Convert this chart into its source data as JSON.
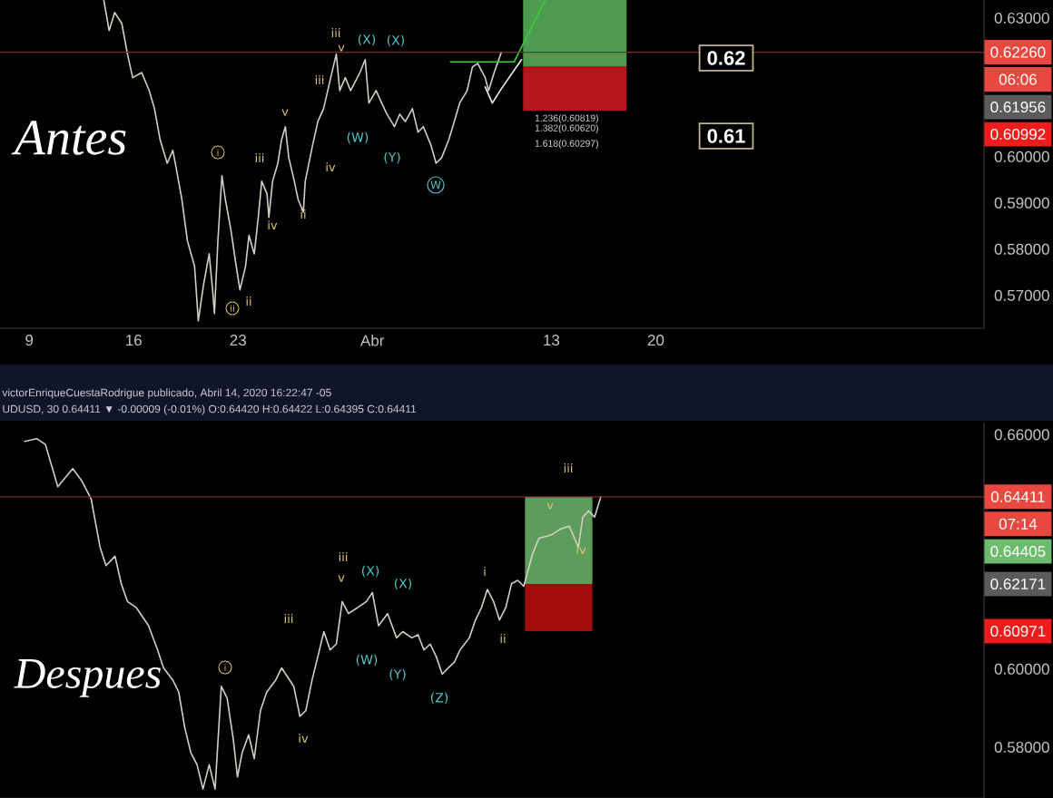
{
  "chart_data": [
    {
      "type": "line",
      "title": "Antes",
      "x": [
        "2020-03-14T00:00",
        "2020-03-14T08:30",
        "2020-03-14T17:30",
        "2020-03-15T05:00",
        "2020-03-15T14:00",
        "2020-03-15T22:30",
        "2020-03-16T13:00",
        "2020-03-17T01:00",
        "2020-03-17T09:30",
        "2020-03-17T18:30",
        "2020-03-18T06:00",
        "2020-03-18T15:00",
        "2020-03-18T20:30",
        "2020-03-19T05:30",
        "2020-03-19T14:30",
        "2020-03-20T02:00",
        "2020-03-20T08:00",
        "2020-03-20T16:30",
        "2020-03-21T01:30",
        "2020-03-21T07:00",
        "2020-03-21T10:00",
        "2020-03-21T15:30",
        "2020-03-21T22:00",
        "2020-03-22T03:30",
        "2020-03-22T12:30",
        "2020-03-22T21:00",
        "2020-03-23T03:00",
        "2020-03-23T12:00",
        "2020-03-23T17:30",
        "2020-03-24T02:00",
        "2020-03-24T08:30",
        "2020-03-24T14:00",
        "2020-03-24T22:30",
        "2020-03-25T01:30",
        "2020-03-25T07:30",
        "2020-03-25T16:00",
        "2020-03-25T22:00",
        "2020-03-26T04:00",
        "2020-03-26T09:30",
        "2020-03-26T18:30",
        "2020-03-27T00:30",
        "2020-03-27T09:00",
        "2020-03-27T12:00",
        "2020-03-28T00:00",
        "2020-03-28T08:30",
        "2020-03-28T17:30",
        "2020-03-29T05:00",
        "2020-03-29T14:00",
        "2020-03-29T19:30",
        "2020-03-30T04:30",
        "2020-03-30T13:00",
        "2020-03-31T04:00",
        "2020-03-31T12:30",
        "2020-03-31T18:30",
        "2020-04-01T06:00",
        "2020-04-01T15:00",
        "2020-04-01T23:30",
        "2020-04-02T11:30",
        "2020-04-02T20:00",
        "2020-04-03T05:00",
        "2020-04-03T16:30",
        "2020-04-04T01:30",
        "2020-04-04T10:00",
        "2020-04-04T22:00",
        "2020-04-05T06:30",
        "2020-04-05T15:30",
        "2020-04-06T03:00",
        "2020-04-06T12:00",
        "2020-04-06T20:30",
        "2020-04-07T08:30",
        "2020-04-07T17:00",
        "2020-04-08T01:30",
        "2020-04-08T13:30",
        "2020-04-08T19:00",
        "2020-04-09T04:00",
        "2020-04-09T15:30"
      ],
      "series": [
        {
          "color": "#d4cfc4",
          "values": [
            0.6339,
            0.6273,
            0.6312,
            0.6288,
            0.6222,
            0.6171,
            0.6182,
            0.6143,
            0.6104,
            0.6037,
            0.5986,
            0.6014,
            0.5975,
            0.5908,
            0.5818,
            0.5763,
            0.5645,
            0.5724,
            0.579,
            0.5712,
            0.5661,
            0.5818,
            0.5959,
            0.5908,
            0.5841,
            0.5763,
            0.5712,
            0.5763,
            0.583,
            0.579,
            0.5869,
            0.5947,
            0.592,
            0.5869,
            0.5947,
            0.5986,
            0.6037,
            0.6065,
            0.5998,
            0.5947,
            0.5908,
            0.588,
            0.5947,
            0.6026,
            0.6077,
            0.6104,
            0.6171,
            0.6222,
            0.6143,
            0.6171,
            0.6143,
            0.6182,
            0.621,
            0.6116,
            0.6143,
            0.6116,
            0.6092,
            0.6065,
            0.6092,
            0.6076,
            0.6104,
            0.6053,
            0.6065,
            0.6026,
            0.5986,
            0.5998,
            0.6037,
            0.6077,
            0.6116,
            0.6143,
            0.6194,
            0.6202,
            0.6171,
            0.6143,
            0.6182,
            0.6226
          ]
        },
        {
          "color": "#35d235",
          "x": [
            "2020-04-06T05:30",
            "2020-04-10T12:00",
            "2020-04-12T14:00"
          ],
          "values": [
            0.6205,
            0.6205,
            0.6339
          ]
        },
        {
          "color": "#f0f0f0",
          "x": [
            "2020-04-08T13:30",
            "2020-04-09T01:00",
            "2020-04-09T15:30",
            "2020-04-11T00:00"
          ],
          "values": [
            0.6151,
            0.6116,
            0.6147,
            0.621
          ]
        },
        {
          "color": "#4e9a50",
          "x": [
            "2020-04-11T02:30",
            "2020-04-18T01:00"
          ],
          "values": [
            null,
            null
          ],
          "lower": [
            0.61956,
            0.61956
          ],
          "upper": [
            0.6339,
            0.6339
          ]
        },
        {
          "color": "#b3161c",
          "x": [
            "2020-04-11T02:30",
            "2020-04-18T01:00"
          ],
          "values": [
            null,
            null
          ],
          "lower": [
            0.60992,
            0.60992
          ],
          "upper": [
            0.61956,
            0.61956
          ]
        }
      ],
      "xlim": [
        "2020-03-07T01:00",
        "2020-05-12T00:00"
      ],
      "xticks": [
        {
          "value": "2020-03-09",
          "label": "9"
        },
        {
          "value": "2020-03-16",
          "label": "16"
        },
        {
          "value": "2020-03-23",
          "label": "23"
        },
        {
          "value": "2020-04-01",
          "label": "Abr"
        },
        {
          "value": "2020-04-13",
          "label": "13"
        },
        {
          "value": "2020-04-20",
          "label": "20"
        }
      ],
      "ylim": [
        0.5629,
        0.6339
      ],
      "yticks": [
        {
          "value": 0.57,
          "label": "0.57000"
        },
        {
          "value": 0.58,
          "label": "0.58000"
        },
        {
          "value": 0.59,
          "label": "0.59000"
        },
        {
          "value": 0.6,
          "label": "0.60000"
        },
        {
          "value": 0.63,
          "label": "0.63000"
        }
      ],
      "ref_lines": [
        {
          "axis": "y",
          "value": 0.6226,
          "label": "0.62260",
          "color": "#7d2b28",
          "line_style": "solid"
        }
      ],
      "annotations": [
        {
          "text": "06:06",
          "y": 0.6226
        },
        "0.61956",
        "0.60992",
        "v",
        "iii",
        "iii",
        "v",
        "iii",
        "iv",
        "iv",
        "ii",
        "ii",
        "i",
        "ii",
        "(X)",
        "(X)",
        "(W)",
        "(Y)",
        "W",
        "1.236(0.60819)",
        "1.382(0.60620)",
        "1.618(0.60297)",
        "0.62",
        "0.61"
      ]
    },
    {
      "type": "line",
      "title": "Despues",
      "x": [
        "2020-03-08T16:30",
        "2020-03-09T12:00",
        "2020-03-10T02:00",
        "2020-03-10T22:00",
        "2020-03-11T22:00",
        "2020-03-12T12:30",
        "2020-03-13T03:30",
        "2020-03-13T18:00",
        "2020-03-14T03:30",
        "2020-03-14T18:00",
        "2020-03-15T04:00",
        "2020-03-15T14:00",
        "2020-03-16T04:30",
        "2020-03-17T00:00",
        "2020-03-17T14:30",
        "2020-03-18T00:00",
        "2020-03-18T15:00",
        "2020-03-19T00:30",
        "2020-03-19T10:30",
        "2020-03-19T20:00",
        "2020-03-20T06:00",
        "2020-03-20T15:30",
        "2020-03-21T01:30",
        "2020-03-21T11:00",
        "2020-03-21T21:00",
        "2020-03-22T06:30",
        "2020-03-22T16:30",
        "2020-03-22T23:00",
        "2020-03-23T06:30",
        "2020-03-23T17:00",
        "2020-03-24T02:00",
        "2020-03-24T12:00",
        "2020-03-24T22:00",
        "2020-03-25T12:30",
        "2020-03-25T22:00",
        "2020-03-26T07:30",
        "2020-03-26T17:30",
        "2020-03-27T03:30",
        "2020-03-27T13:00",
        "2020-03-27T23:00",
        "2020-03-28T08:30",
        "2020-03-28T18:00",
        "2020-03-29T04:00",
        "2020-03-29T14:00",
        "2020-03-29T23:30",
        "2020-03-30T09:30",
        "2020-03-31T00:00",
        "2020-03-31T14:30",
        "2020-04-01T00:00",
        "2020-04-01T10:00",
        "2020-04-02T00:30",
        "2020-04-02T15:00",
        "2020-04-03T01:00",
        "2020-04-03T15:30",
        "2020-04-04T01:30",
        "2020-04-04T11:00",
        "2020-04-04T21:00",
        "2020-04-05T06:30",
        "2020-04-05T16:30",
        "2020-04-06T02:00",
        "2020-04-06T12:00",
        "2020-04-06T21:00",
        "2020-04-07T12:00",
        "2020-04-07T22:00",
        "2020-04-08T07:30",
        "2020-04-08T17:00",
        "2020-04-09T03:00",
        "2020-04-09T12:30",
        "2020-04-09T22:30",
        "2020-04-10T08:00",
        "2020-04-10T18:00",
        "2020-04-11T03:30",
        "2020-04-11T18:00",
        "2020-04-12T04:00",
        "2020-04-12T23:30",
        "2020-04-13T14:00",
        "2020-04-14T04:30",
        "2020-04-14T19:30",
        "2020-04-15T02:30",
        "2020-04-15T12:00",
        "2020-04-15T21:30",
        "2020-04-16T07:30"
      ],
      "series": [
        {
          "color": "#5e9c5e",
          "x": [
            "2020-04-11T05:30",
            "2020-04-15T18:00"
          ],
          "values": [
            null,
            null
          ],
          "lower": [
            0.62171,
            0.62171
          ],
          "upper": [
            0.64405,
            0.64405
          ]
        },
        {
          "color": "#a30c0c",
          "x": [
            "2020-04-11T05:30",
            "2020-04-15T18:00"
          ],
          "values": [
            null,
            null
          ],
          "lower": [
            0.60971,
            0.60971
          ],
          "upper": [
            0.62171,
            0.62171
          ]
        },
        {
          "color": "#d4cfc4",
          "values": [
            0.6583,
            0.659,
            0.6575,
            0.6467,
            0.6513,
            0.6482,
            0.6436,
            0.6312,
            0.6265,
            0.6289,
            0.6219,
            0.6173,
            0.6157,
            0.6111,
            0.6049,
            0.6003,
            0.5972,
            0.5941,
            0.5848,
            0.5786,
            0.5755,
            0.5693,
            0.5755,
            0.5693,
            0.5956,
            0.5925,
            0.5817,
            0.5724,
            0.5786,
            0.5832,
            0.5771,
            0.5894,
            0.5941,
            0.5972,
            0.6003,
            0.598,
            0.5956,
            0.5879,
            0.5894,
            0.5972,
            0.6033,
            0.6096,
            0.6049,
            0.6064,
            0.6173,
            0.6142,
            0.6157,
            0.6173,
            0.6196,
            0.6111,
            0.6142,
            0.608,
            0.6096,
            0.608,
            0.6088,
            0.6049,
            0.6064,
            0.6033,
            0.5987,
            0.6003,
            0.6018,
            0.6049,
            0.608,
            0.6126,
            0.6157,
            0.6204,
            0.6173,
            0.6126,
            0.6157,
            0.6219,
            0.6227,
            0.6212,
            0.6296,
            0.6335,
            0.6343,
            0.6358,
            0.6366,
            0.6312,
            0.6389,
            0.6405,
            0.6389,
            0.6441
          ]
        }
      ],
      "xlim": [
        "2020-03-07T01:00",
        "2020-05-12T00:00"
      ],
      "ylim": [
        0.567,
        0.6631
      ],
      "yticks": [
        {
          "value": 0.58,
          "label": "0.58000"
        },
        {
          "value": 0.6,
          "label": "0.60000"
        },
        {
          "value": 0.66,
          "label": "0.66000"
        }
      ],
      "tick_labels": "y",
      "ref_lines": [
        {
          "axis": "y",
          "value": 0.64411,
          "label": "0.64411",
          "color": "#7d2b28",
          "line_style": "solid"
        }
      ],
      "annotations": [
        "victorEnriqueCuestaRodrigue publicado, Abril 14, 2020 16:22:47 -05",
        "UDUSD, 30 0.64411 ▼ -0.00009 (-0.01%) O:0.64420 H:0.64422 L:0.64395 C:0.64411",
        {
          "text": "07:14",
          "y": 0.64411
        },
        "0.64405",
        "0.62171",
        "0.60971",
        "iii",
        "v",
        "iii",
        "iv",
        "i",
        "i",
        "ii",
        "iii",
        "v",
        "iv",
        "(X)",
        "(X)",
        "(W)",
        "(Y)",
        "(Z)"
      ]
    }
  ]
}
